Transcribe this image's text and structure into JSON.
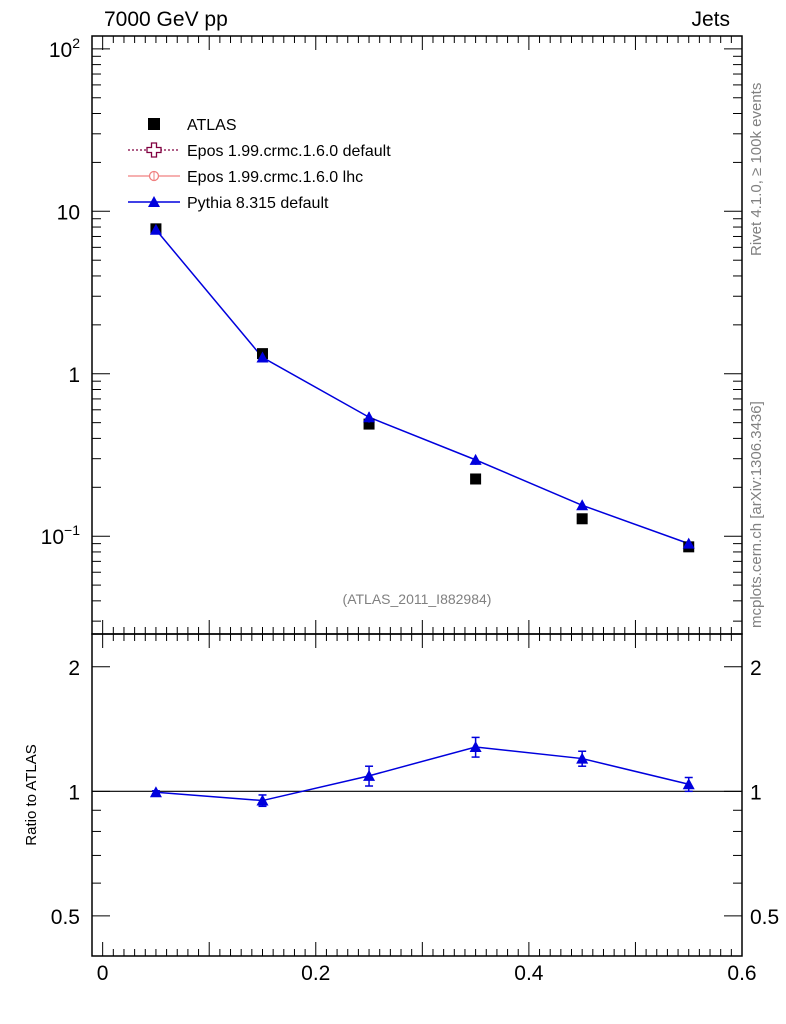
{
  "header": {
    "left_title": "7000 GeV pp",
    "right_title": "Jets"
  },
  "side_labels": {
    "rivet": "Rivet 4.1.0, ≥ 100k events",
    "mcplots": "mcplots.cern.ch [arXiv:1306.3436]"
  },
  "colors": {
    "data": "#000000",
    "epos_default": "#800040",
    "epos_lhc": "#f08080",
    "pythia": "#0000dd",
    "watermark": "#808080"
  },
  "chart_data": [
    {
      "type": "line",
      "panel": "main",
      "yscale": "log",
      "xlim": [
        -0.01,
        0.6
      ],
      "ylim": [
        0.025,
        120
      ],
      "xlabel": "",
      "ylabel": "",
      "watermark": "(ATLAS_2011_I882984)",
      "y_tick_labels": [
        {
          "value": 100,
          "base": "10",
          "exp": "2"
        },
        {
          "value": 10,
          "base": "10",
          "exp": ""
        },
        {
          "value": 1,
          "base": "1",
          "exp": ""
        },
        {
          "value": 0.1,
          "base": "10",
          "exp": "−1"
        }
      ],
      "legend": {
        "position": "top-left",
        "entries": [
          {
            "label": "ATLAS",
            "marker": "square"
          },
          {
            "label": "Epos 1.99.crmc.1.6.0 default",
            "marker": "open-cross"
          },
          {
            "label": "Epos 1.99.crmc.1.6.0 lhc",
            "marker": "open-circle"
          },
          {
            "label": "Pythia 8.315 default",
            "marker": "triangle"
          }
        ]
      },
      "series": [
        {
          "name": "ATLAS",
          "style": "points",
          "x": [
            0.05,
            0.15,
            0.25,
            0.35,
            0.45,
            0.55
          ],
          "values": [
            7.8,
            1.33,
            0.49,
            0.225,
            0.128,
            0.086
          ]
        },
        {
          "name": "Pythia 8.315 default",
          "style": "line-markers",
          "x": [
            0.05,
            0.15,
            0.25,
            0.35,
            0.45,
            0.55
          ],
          "values": [
            7.7,
            1.26,
            0.54,
            0.295,
            0.155,
            0.09
          ],
          "err": [
            0.2,
            0.05,
            0.04,
            0.02,
            0.008,
            0.004
          ]
        }
      ]
    },
    {
      "type": "line",
      "panel": "ratio",
      "yscale": "log",
      "xlim": [
        -0.01,
        0.6
      ],
      "ylim": [
        0.4,
        2.4
      ],
      "xlabel": "",
      "ylabel": "Ratio to ATLAS",
      "y_ticks": [
        0.5,
        1,
        2
      ],
      "y_tick_labels": [
        "0.5",
        "1",
        "2"
      ],
      "x_ticks": [
        0,
        0.2,
        0.4,
        0.6
      ],
      "x_tick_labels": [
        "0",
        "0.2",
        "0.4",
        "0.6"
      ],
      "reference": 1,
      "series": [
        {
          "name": "Pythia 8.315 default",
          "x": [
            0.05,
            0.15,
            0.25,
            0.35,
            0.45,
            0.55
          ],
          "values": [
            0.995,
            0.95,
            1.09,
            1.28,
            1.2,
            1.04
          ],
          "err": [
            0.008,
            0.03,
            0.06,
            0.07,
            0.05,
            0.04
          ]
        }
      ]
    }
  ]
}
